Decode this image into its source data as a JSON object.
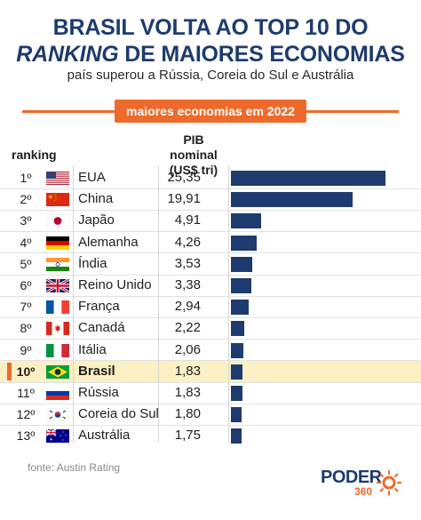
{
  "header": {
    "title_line1": "BRASIL VOLTA AO TOP 10 DO",
    "title_line2_em": "RANKING",
    "title_line2_rest": " DE MAIORES ECONOMIAS",
    "subtitle": "país superou a Rússia, Coreia do Sul e Austrália",
    "banner": "maiores economias em 2022"
  },
  "columns": {
    "rank_header": "ranking",
    "pib_header_line1": "PIB nominal",
    "pib_header_line2": "(US$ tri)"
  },
  "rows": [
    {
      "rank": "1º",
      "flag": "usa-flag-icon",
      "country": "EUA",
      "value_label": "25,35"
    },
    {
      "rank": "2º",
      "flag": "china-flag-icon",
      "country": "China",
      "value_label": "19,91"
    },
    {
      "rank": "3º",
      "flag": "japan-flag-icon",
      "country": "Japão",
      "value_label": "4,91"
    },
    {
      "rank": "4º",
      "flag": "germany-flag-icon",
      "country": "Alemanha",
      "value_label": "4,26"
    },
    {
      "rank": "5º",
      "flag": "india-flag-icon",
      "country": "Índia",
      "value_label": "3,53"
    },
    {
      "rank": "6º",
      "flag": "uk-flag-icon",
      "country": "Reino Unido",
      "value_label": "3,38"
    },
    {
      "rank": "7º",
      "flag": "france-flag-icon",
      "country": "França",
      "value_label": "2,94"
    },
    {
      "rank": "8º",
      "flag": "canada-flag-icon",
      "country": "Canadá",
      "value_label": "2,22"
    },
    {
      "rank": "9º",
      "flag": "italy-flag-icon",
      "country": "Itália",
      "value_label": "2,06"
    },
    {
      "rank": "10º",
      "flag": "brazil-flag-icon",
      "country": "Brasil",
      "value_label": "1,83",
      "highlight": true
    },
    {
      "rank": "11º",
      "flag": "russia-flag-icon",
      "country": "Rússia",
      "value_label": "1,83"
    },
    {
      "rank": "12º",
      "flag": "south-korea-flag-icon",
      "country": "Coreia do Sul",
      "value_label": "1,80"
    },
    {
      "rank": "13º",
      "flag": "australia-flag-icon",
      "country": "Austrália",
      "value_label": "1,75"
    }
  ],
  "chart_data": {
    "type": "bar",
    "orientation": "horizontal",
    "categories": [
      "EUA",
      "China",
      "Japão",
      "Alemanha",
      "Índia",
      "Reino Unido",
      "França",
      "Canadá",
      "Itália",
      "Brasil",
      "Rússia",
      "Coreia do Sul",
      "Austrália"
    ],
    "values": [
      25.35,
      19.91,
      4.91,
      4.26,
      3.53,
      3.38,
      2.94,
      2.22,
      2.06,
      1.83,
      1.83,
      1.8,
      1.75
    ],
    "title": "maiores economias em 2022",
    "ylabel": "PIB nominal (US$ tri)",
    "highlight_category": "Brasil"
  },
  "footer": {
    "source": "fonte: Austin Rating",
    "logo_text": "PODER",
    "logo_number": "360"
  },
  "colors": {
    "navy": "#1d3b6e",
    "orange": "#ee6a2b",
    "highlight_row": "#fbefc4"
  }
}
